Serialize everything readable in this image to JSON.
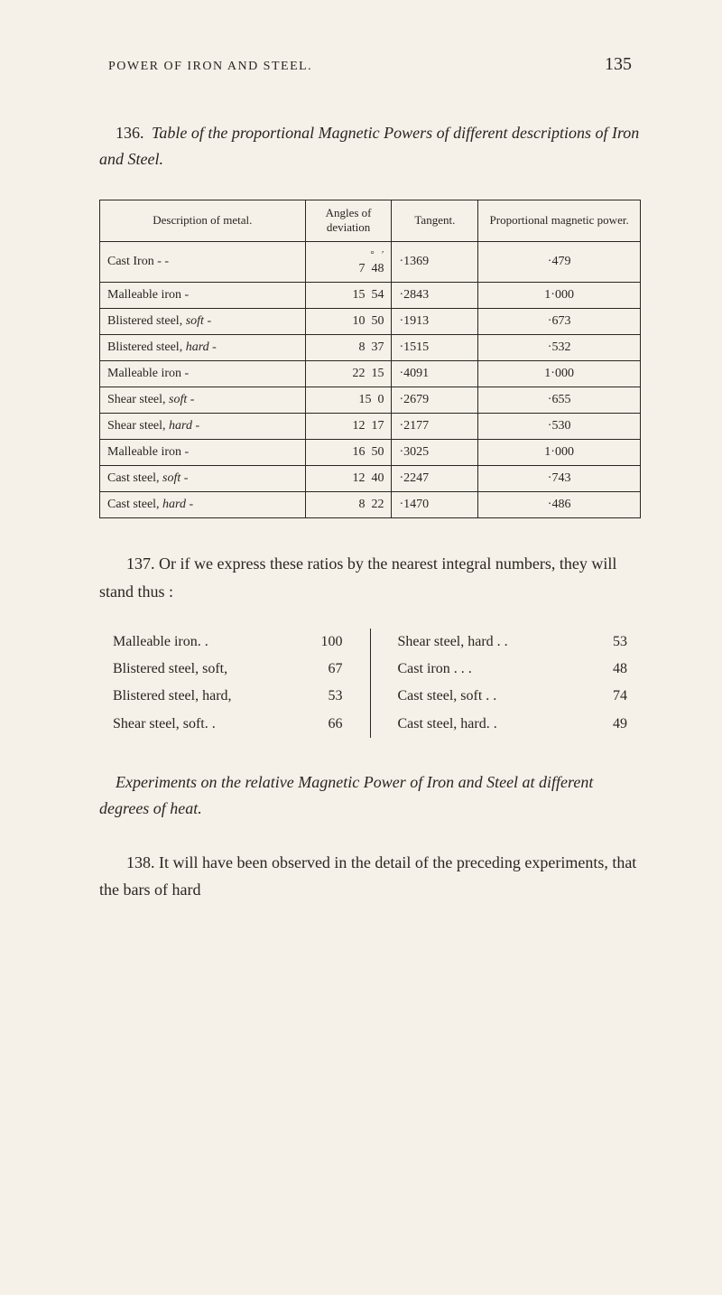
{
  "header": {
    "title": "POWER OF IRON AND STEEL.",
    "page_number": "135"
  },
  "section136": {
    "number": "136.",
    "title_pre": "Table of the proportional Magnetic Powers of different descriptions of Iron and Steel."
  },
  "table": {
    "headers": {
      "description": "Description of metal.",
      "angles": "Angles of deviation",
      "tangent": "Tangent.",
      "proportional": "Proportional magnetic power."
    },
    "symbol_deg": "°",
    "symbol_min": "′",
    "groups": [
      {
        "rows": [
          {
            "desc": "Cast Iron",
            "dash": "-  -",
            "deg": "7",
            "min": "48",
            "tan": "·1369",
            "prop": "·479"
          },
          {
            "desc": "Malleable iron",
            "dash": "-",
            "deg": "15",
            "min": "54",
            "tan": "·2843",
            "prop": "1·000"
          },
          {
            "desc": "Blistered steel,",
            "style": "soft",
            "dash": "-",
            "deg": "10",
            "min": "50",
            "tan": "·1913",
            "prop": "·673"
          },
          {
            "desc": "Blistered steel,",
            "style": "hard",
            "dash": "-",
            "deg": "8",
            "min": "37",
            "tan": "·1515",
            "prop": "·532"
          }
        ]
      },
      {
        "rows": [
          {
            "desc": "Malleable iron",
            "dash": "-",
            "deg": "22",
            "min": "15",
            "tan": "·4091",
            "prop": "1·000"
          },
          {
            "desc": "Shear steel,",
            "style": "soft",
            "dash": "-",
            "deg": "15",
            "min": "0",
            "tan": "·2679",
            "prop": "·655"
          },
          {
            "desc": "Shear steel,",
            "style": "hard",
            "dash": "-",
            "deg": "12",
            "min": "17",
            "tan": "·2177",
            "prop": "·530"
          }
        ]
      },
      {
        "rows": [
          {
            "desc": "Malleable iron",
            "dash": "-",
            "deg": "16",
            "min": "50",
            "tan": "·3025",
            "prop": "1·000"
          },
          {
            "desc": "Cast steel,",
            "style": "soft",
            "dash": "-",
            "deg": "12",
            "min": "40",
            "tan": "·2247",
            "prop": "·743"
          },
          {
            "desc": "Cast steel,",
            "style": "hard",
            "dash": "-",
            "deg": "8",
            "min": "22",
            "tan": "·1470",
            "prop": "·486"
          }
        ]
      }
    ]
  },
  "section137": {
    "number": "137.",
    "text": "Or if we express these ratios by the nearest integral numbers, they will stand thus :"
  },
  "ratios": {
    "left": [
      {
        "label": "Malleable iron.",
        "dots": ".",
        "val": "100"
      },
      {
        "label": "Blistered steel, soft,",
        "dots": "",
        "val": "67"
      },
      {
        "label": "Blistered steel, hard,",
        "dots": "",
        "val": "53"
      },
      {
        "label": "Shear steel, soft.",
        "dots": ".",
        "val": "66"
      }
    ],
    "right": [
      {
        "label": "Shear steel, hard",
        "dots": ". .",
        "val": "53"
      },
      {
        "label": "Cast iron",
        "dots": ". . .",
        "val": "48"
      },
      {
        "label": "Cast steel, soft",
        "dots": ". .",
        "val": "74"
      },
      {
        "label": "Cast steel, hard.",
        "dots": ".",
        "val": "49"
      }
    ]
  },
  "subsection": {
    "title": "Experiments on the relative Magnetic Power of Iron and Steel at different degrees of heat."
  },
  "section138": {
    "number": "138.",
    "text": "It will have been observed in the detail of the preceding experiments, that the bars of hard"
  }
}
